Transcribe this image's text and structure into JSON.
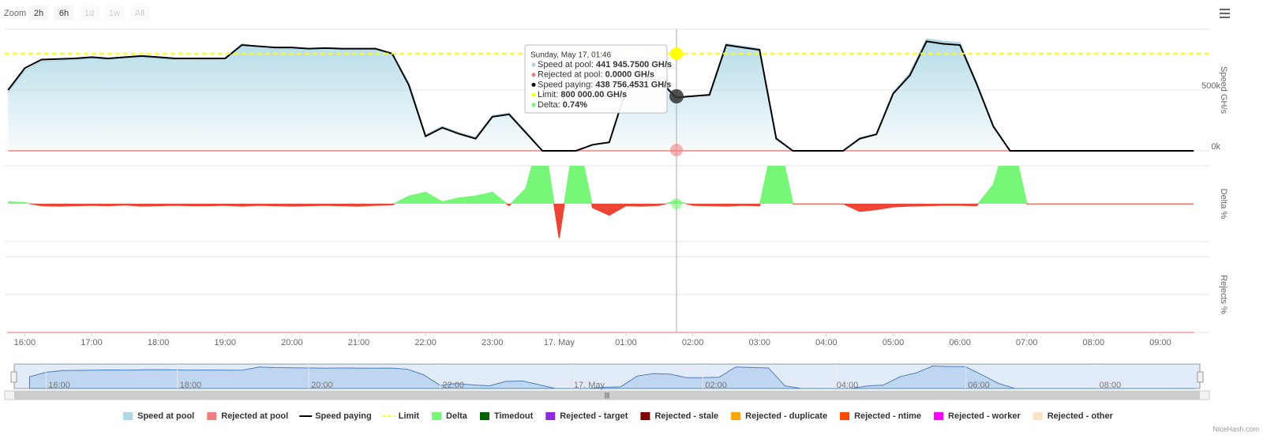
{
  "zoom": {
    "label": "Zoom",
    "buttons": [
      {
        "label": "2h",
        "enabled": true
      },
      {
        "label": "6h",
        "enabled": true
      },
      {
        "label": "1d",
        "enabled": false
      },
      {
        "label": "1w",
        "enabled": false
      },
      {
        "label": "All",
        "enabled": false
      }
    ]
  },
  "tooltip": {
    "title": "Sunday, May 17, 01:46",
    "rows": [
      {
        "label": "Speed at pool: ",
        "value": "441 945.7500 GH/s",
        "color": "#add8e6"
      },
      {
        "label": "Rejected at pool: ",
        "value": "0.0000 GH/s",
        "color": "#f08080"
      },
      {
        "label": "Speed paying: ",
        "value": "438 756.4531 GH/s",
        "color": "#000000"
      },
      {
        "label": "Limit: ",
        "value": "800 000.00 GH/s",
        "color": "#ffff00"
      },
      {
        "label": "Delta: ",
        "value": "0.74%",
        "color": "#77f777"
      }
    ]
  },
  "credits": "NiceHash.com",
  "chart_data": [
    {
      "type": "area",
      "ylabel": "Speed GH/s",
      "x": [
        "15:45",
        "16:00",
        "16:15",
        "16:30",
        "16:45",
        "17:00",
        "17:15",
        "17:30",
        "17:45",
        "18:00",
        "18:15",
        "18:30",
        "18:45",
        "19:00",
        "19:15",
        "19:30",
        "19:45",
        "20:00",
        "20:15",
        "20:30",
        "20:45",
        "21:00",
        "21:15",
        "21:30",
        "21:45",
        "22:00",
        "22:15",
        "22:30",
        "22:45",
        "23:00",
        "23:15",
        "23:30",
        "23:45",
        "00:00",
        "00:15",
        "00:30",
        "00:45",
        "01:00",
        "01:15",
        "01:30",
        "01:45",
        "02:00",
        "02:15",
        "02:30",
        "02:45",
        "03:00",
        "03:15",
        "03:30",
        "03:45",
        "04:00",
        "04:15",
        "04:30",
        "04:45",
        "05:00",
        "05:15",
        "05:30",
        "05:45",
        "06:00",
        "06:15",
        "06:30",
        "06:45",
        "07:00",
        "07:15",
        "07:30",
        "07:45",
        "08:00",
        "08:15",
        "08:30",
        "08:45",
        "09:00",
        "09:15",
        "09:30"
      ],
      "xlim": [
        "15:42",
        "09:44"
      ],
      "xticks": [
        "16:00",
        "17:00",
        "18:00",
        "19:00",
        "20:00",
        "21:00",
        "22:00",
        "23:00",
        {
          "value": "00:00",
          "label": "17. May"
        },
        "01:00",
        "02:00",
        "03:00",
        "04:00",
        "05:00",
        "06:00",
        "07:00",
        "08:00",
        "09:00"
      ],
      "ylim": [
        0,
        1000000
      ],
      "yticks": [
        {
          "value": 0,
          "label": "0k"
        },
        {
          "value": 500000,
          "label": "500k"
        }
      ],
      "series": [
        {
          "name": "Speed at pool",
          "type": "area",
          "color": "#add8e6",
          "values": [
            480000,
            660000,
            735000,
            740000,
            750000,
            760000,
            750000,
            765000,
            770000,
            760000,
            750000,
            755000,
            750000,
            755000,
            880000,
            855000,
            845000,
            840000,
            835000,
            840000,
            835000,
            830000,
            835000,
            790000,
            560000,
            130000,
            200000,
            150000,
            110000,
            290000,
            310000,
            160000,
            0,
            0,
            0,
            50000,
            70000,
            510000,
            610000,
            590000,
            442000,
            445000,
            465000,
            880000,
            860000,
            840000,
            110000,
            0,
            0,
            0,
            0,
            105000,
            140000,
            480000,
            640000,
            920000,
            900000,
            890000,
            560000,
            210000,
            0,
            0,
            0,
            0,
            0,
            0,
            0,
            0,
            0,
            0,
            0,
            0
          ]
        },
        {
          "name": "Rejected at pool",
          "type": "area",
          "color": "#f08080",
          "values": [
            0,
            0,
            0,
            0,
            0,
            0,
            0,
            0,
            0,
            0,
            0,
            0,
            0,
            0,
            0,
            0,
            0,
            0,
            0,
            0,
            0,
            0,
            0,
            0,
            0,
            0,
            0,
            0,
            0,
            0,
            0,
            0,
            0,
            0,
            0,
            0,
            0,
            0,
            0,
            0,
            0,
            0,
            0,
            0,
            0,
            0,
            0,
            0,
            0,
            0,
            0,
            0,
            0,
            0,
            0,
            0,
            0,
            0,
            0,
            0,
            0,
            0,
            0,
            0,
            0,
            0,
            0,
            0,
            0,
            0,
            0,
            0
          ]
        },
        {
          "name": "Speed paying",
          "type": "line",
          "color": "#000000",
          "values": [
            500000,
            680000,
            750000,
            755000,
            760000,
            770000,
            760000,
            770000,
            780000,
            770000,
            760000,
            760000,
            760000,
            760000,
            870000,
            860000,
            850000,
            850000,
            840000,
            845000,
            840000,
            840000,
            840000,
            800000,
            540000,
            120000,
            190000,
            140000,
            100000,
            280000,
            300000,
            150000,
            0,
            0,
            0,
            50000,
            70000,
            500000,
            600000,
            580000,
            438000,
            450000,
            460000,
            870000,
            850000,
            830000,
            100000,
            0,
            0,
            0,
            0,
            100000,
            136000,
            470000,
            620000,
            900000,
            880000,
            870000,
            550000,
            200000,
            0,
            0,
            0,
            0,
            0,
            0,
            0,
            0,
            0,
            0,
            0,
            0
          ]
        }
      ],
      "plot_lines": [
        {
          "name": "Limit",
          "color": "#ffff00",
          "value": 800000
        }
      ],
      "navigator": {
        "xlim": [
          "15:31",
          "09:34"
        ],
        "xticks": [
          "16:00",
          "18:00",
          "20:00",
          "22:00",
          {
            "value": "00:00",
            "label": "17. May"
          },
          "02:00",
          "04:00",
          "06:00",
          "08:00"
        ]
      }
    },
    {
      "type": "area",
      "ylabel": "Delta %",
      "ylim": [
        -10,
        10
      ],
      "series": [
        {
          "name": "Delta",
          "type": "area",
          "color": "#77f777",
          "negative_color": "#ee4433",
          "values": [
            0.5,
            0.3,
            -0.5,
            -0.6,
            -0.5,
            -0.4,
            -0.5,
            -0.3,
            -0.6,
            -0.5,
            -0.4,
            -0.5,
            -0.5,
            -0.4,
            -0.6,
            -0.4,
            -0.5,
            -0.6,
            -0.5,
            -0.4,
            -0.5,
            -0.6,
            -0.4,
            -0.3,
            2,
            3,
            0.5,
            1.5,
            2,
            3,
            -0.5,
            4,
            20,
            -9,
            20,
            -1,
            -3,
            -0.5,
            -0.6,
            -0.4,
            0.74,
            -0.4,
            -0.5,
            -0.6,
            -0.4,
            -0.5,
            20,
            0,
            0,
            0,
            0,
            -2,
            -1.5,
            -0.8,
            -0.6,
            -0.5,
            -0.4,
            -0.4,
            -0.5,
            5,
            20,
            0,
            0,
            0,
            0,
            0,
            0,
            0,
            0,
            0,
            0,
            0
          ]
        }
      ]
    },
    {
      "type": "area",
      "ylabel": "Rejects %",
      "ylim": [
        0,
        10
      ],
      "series": [
        {
          "name": "Timedout",
          "color": "#006400",
          "values": [
            0,
            0,
            0,
            0,
            0,
            0,
            0,
            0,
            0,
            0,
            0,
            0,
            0,
            0,
            0,
            0,
            0,
            0,
            0,
            0,
            0,
            0,
            0,
            0,
            0,
            0,
            0,
            0,
            0,
            0,
            0,
            0,
            0,
            0,
            0,
            0,
            0,
            0,
            0,
            0,
            0,
            0,
            0,
            0,
            0,
            0,
            0,
            0,
            0,
            0,
            0,
            0,
            0,
            0,
            0,
            0,
            0,
            0,
            0,
            0,
            0,
            0,
            0,
            0,
            0,
            0,
            0,
            0,
            0,
            0,
            0,
            0
          ]
        },
        {
          "name": "Rejected - target",
          "color": "#8a2be2",
          "values": [
            0,
            0,
            0,
            0,
            0,
            0,
            0,
            0,
            0,
            0,
            0,
            0,
            0,
            0,
            0,
            0,
            0,
            0,
            0,
            0,
            0,
            0,
            0,
            0,
            0,
            0,
            0,
            0,
            0,
            0,
            0,
            0,
            0,
            0,
            0,
            0,
            0,
            0,
            0,
            0,
            0,
            0,
            0,
            0,
            0,
            0,
            0,
            0,
            0,
            0,
            0,
            0,
            0,
            0,
            0,
            0,
            0,
            0,
            0,
            0,
            0,
            0,
            0,
            0,
            0,
            0,
            0,
            0,
            0,
            0,
            0,
            0
          ]
        },
        {
          "name": "Rejected - stale",
          "color": "#800000",
          "values": [
            0,
            0,
            0,
            0,
            0,
            0,
            0,
            0,
            0,
            0,
            0,
            0,
            0,
            0,
            0,
            0,
            0,
            0,
            0,
            0,
            0,
            0,
            0,
            0,
            0,
            0,
            0,
            0,
            0,
            0,
            0,
            0,
            0,
            0,
            0,
            0,
            0,
            0,
            0,
            0,
            0,
            0,
            0,
            0,
            0,
            0,
            0,
            0,
            0,
            0,
            0,
            0,
            0,
            0,
            0,
            0,
            0,
            0,
            0,
            0,
            0,
            0,
            0,
            0,
            0,
            0,
            0,
            0,
            0,
            0,
            0,
            0
          ]
        },
        {
          "name": "Rejected - duplicate",
          "color": "#ffa500",
          "values": [
            0,
            0,
            0,
            0,
            0,
            0,
            0,
            0,
            0,
            0,
            0,
            0,
            0,
            0,
            0,
            0,
            0,
            0,
            0,
            0,
            0,
            0,
            0,
            0,
            0,
            0,
            0,
            0,
            0,
            0,
            0,
            0,
            0,
            0,
            0,
            0,
            0,
            0,
            0,
            0,
            0,
            0,
            0,
            0,
            0,
            0,
            0,
            0,
            0,
            0,
            0,
            0,
            0,
            0,
            0,
            0,
            0,
            0,
            0,
            0,
            0,
            0,
            0,
            0,
            0,
            0,
            0,
            0,
            0,
            0,
            0,
            0
          ]
        },
        {
          "name": "Rejected - ntime",
          "color": "#ff4500",
          "values": [
            0,
            0,
            0,
            0,
            0,
            0,
            0,
            0,
            0,
            0,
            0,
            0,
            0,
            0,
            0,
            0,
            0,
            0,
            0,
            0,
            0,
            0,
            0,
            0,
            0,
            0,
            0,
            0,
            0,
            0,
            0,
            0,
            0,
            0,
            0,
            0,
            0,
            0,
            0,
            0,
            0,
            0,
            0,
            0,
            0,
            0,
            0,
            0,
            0,
            0,
            0,
            0,
            0,
            0,
            0,
            0,
            0,
            0,
            0,
            0,
            0,
            0,
            0,
            0,
            0,
            0,
            0,
            0,
            0,
            0,
            0,
            0
          ]
        },
        {
          "name": "Rejected - worker",
          "color": "#ff00ff",
          "values": [
            0,
            0,
            0,
            0,
            0,
            0,
            0,
            0,
            0,
            0,
            0,
            0,
            0,
            0,
            0,
            0,
            0,
            0,
            0,
            0,
            0,
            0,
            0,
            0,
            0,
            0,
            0,
            0,
            0,
            0,
            0,
            0,
            0,
            0,
            0,
            0,
            0,
            0,
            0,
            0,
            0,
            0,
            0,
            0,
            0,
            0,
            0,
            0,
            0,
            0,
            0,
            0,
            0,
            0,
            0,
            0,
            0,
            0,
            0,
            0,
            0,
            0,
            0,
            0,
            0,
            0,
            0,
            0,
            0,
            0,
            0,
            0
          ]
        },
        {
          "name": "Rejected - other",
          "color": "#ffe4c4",
          "values": [
            0,
            0,
            0,
            0,
            0,
            0,
            0,
            0,
            0,
            0,
            0,
            0,
            0,
            0,
            0,
            0,
            0,
            0,
            0,
            0,
            0,
            0,
            0,
            0,
            0,
            0,
            0,
            0,
            0,
            0,
            0,
            0,
            0,
            0,
            0,
            0,
            0,
            0,
            0,
            0,
            0,
            0,
            0,
            0,
            0,
            0,
            0,
            0,
            0,
            0,
            0,
            0,
            0,
            0,
            0,
            0,
            0,
            0,
            0,
            0,
            0,
            0,
            0,
            0,
            0,
            0,
            0,
            0,
            0,
            0,
            0,
            0
          ]
        }
      ]
    }
  ]
}
